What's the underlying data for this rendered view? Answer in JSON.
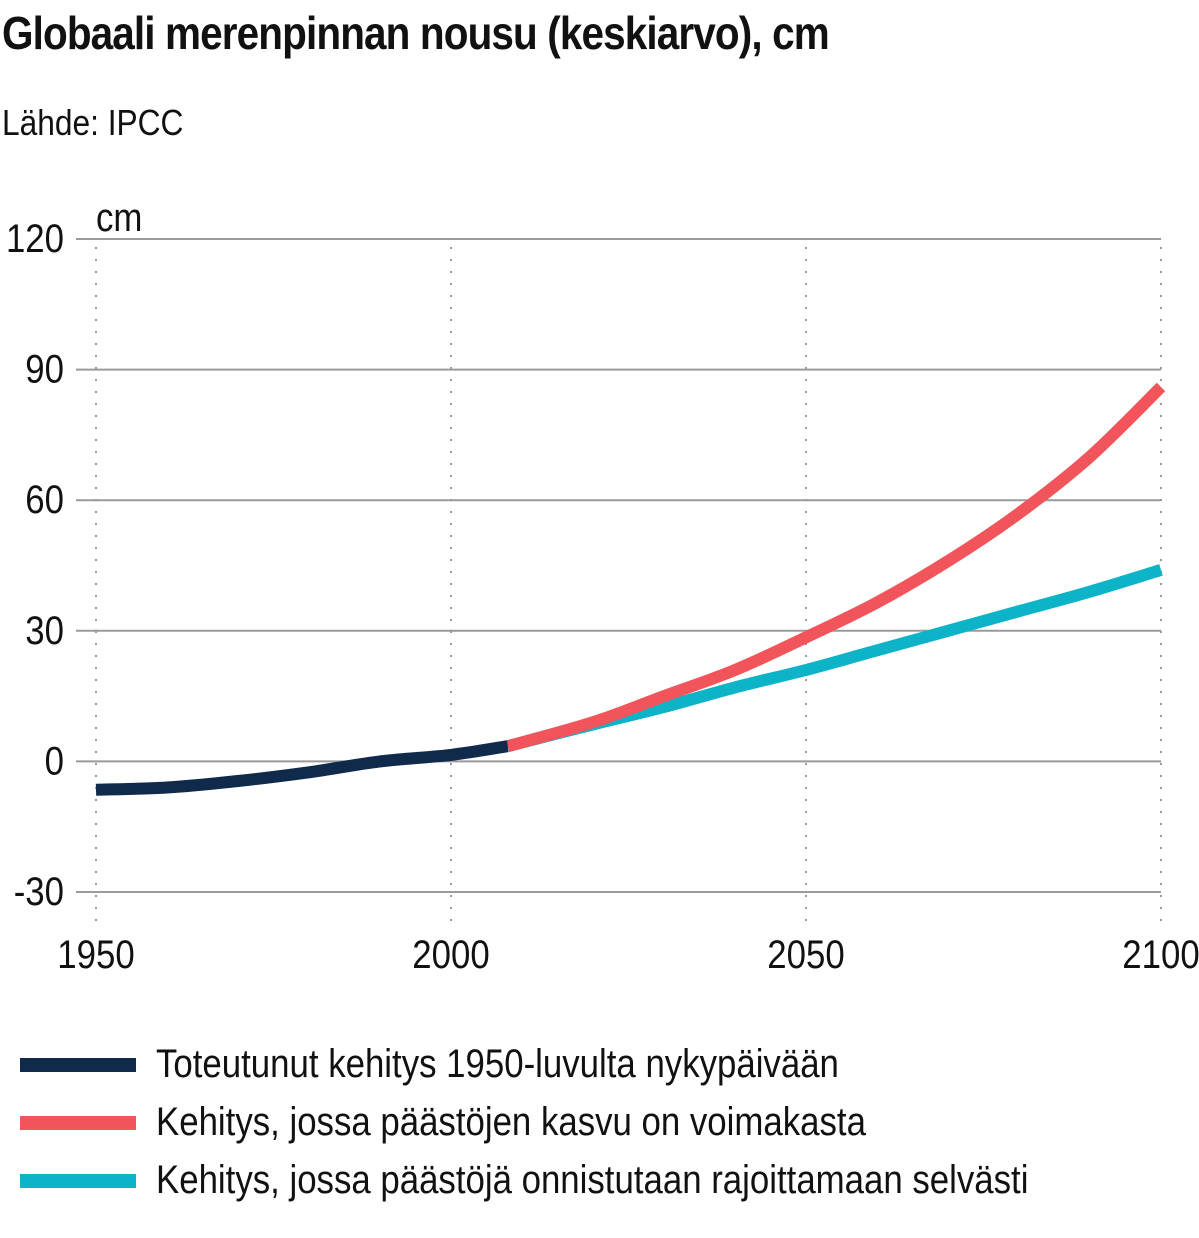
{
  "title": "Globaali merenpinnan nousu (keskiarvo), cm",
  "source": "Lähde: IPCC",
  "chart_data": {
    "type": "line",
    "unit_label": "cm",
    "xlim": [
      1950,
      2100
    ],
    "ylim": [
      -30,
      120
    ],
    "x_ticks": [
      1950,
      2000,
      2050,
      2100
    ],
    "y_ticks": [
      -30,
      0,
      30,
      60,
      90,
      120
    ],
    "grid": "horizontal solid lines, vertical dotted lines",
    "legend_placement": "bottom",
    "series": [
      {
        "name": "Toteutunut kehitys 1950-luvulta nykypäivään",
        "color": "#0f2a4a",
        "x": [
          1950,
          1960,
          1970,
          1980,
          1990,
          2000,
          2008
        ],
        "y": [
          -6.5,
          -6,
          -4.5,
          -2.5,
          0,
          1.5,
          3.5
        ]
      },
      {
        "name": "Kehitys, jossa päästöjen kasvu on voimakasta",
        "color": "#f2545b",
        "x": [
          2008,
          2020,
          2030,
          2040,
          2050,
          2060,
          2070,
          2080,
          2090,
          2100
        ],
        "y": [
          3.5,
          9,
          15,
          21,
          28.5,
          36.5,
          46,
          57,
          70,
          86
        ]
      },
      {
        "name": "Kehitys, jossa päästöjä onnistutaan rajoittamaan selvästi",
        "color": "#0db4c8",
        "x": [
          2008,
          2020,
          2030,
          2040,
          2050,
          2060,
          2070,
          2080,
          2090,
          2100
        ],
        "y": [
          3.5,
          8.5,
          12.5,
          17,
          21,
          25.5,
          30,
          34.5,
          39,
          44
        ]
      }
    ]
  }
}
